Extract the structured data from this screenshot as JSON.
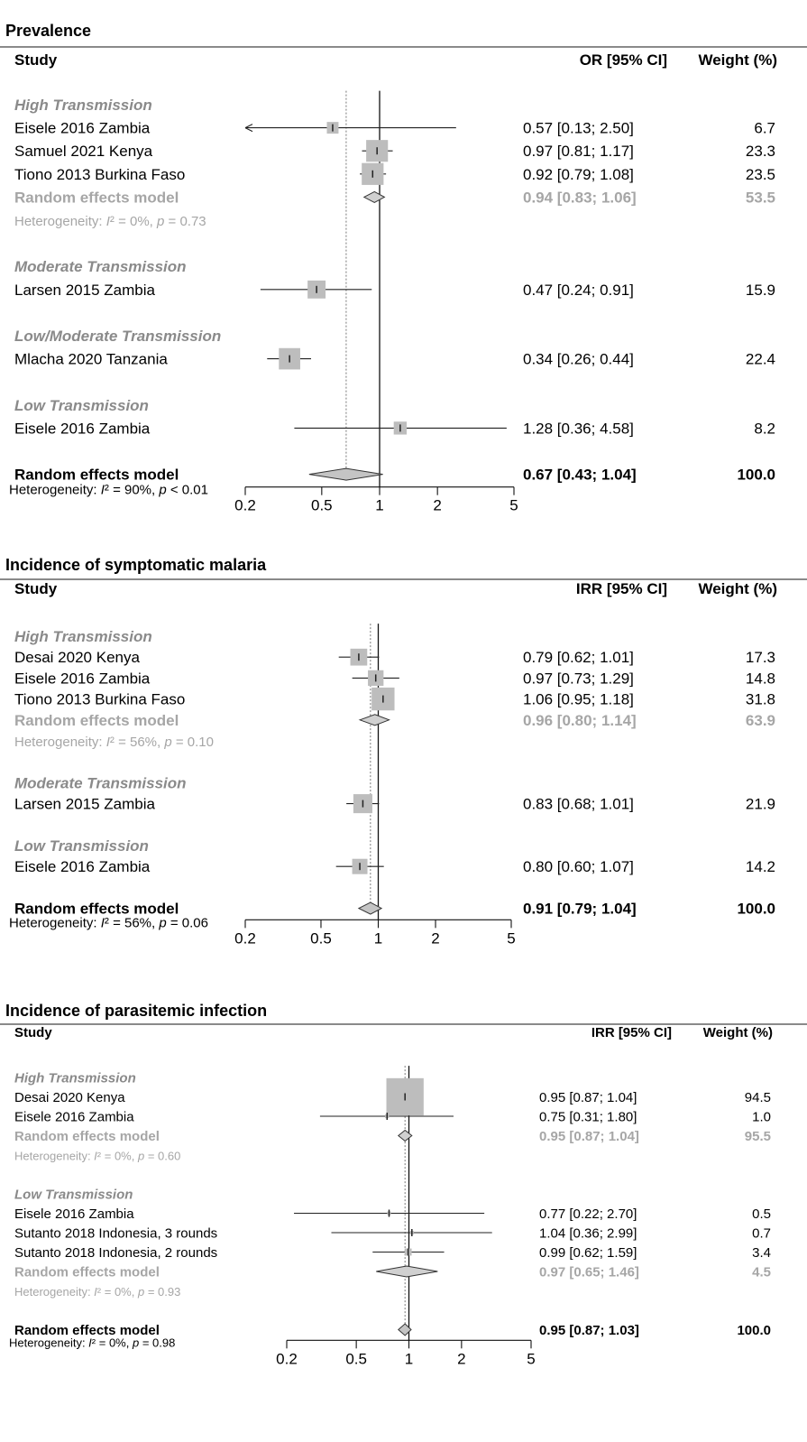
{
  "chart_data": [
    {
      "type": "forest",
      "title": "Prevalence",
      "header_study": "Study",
      "header_effect": "OR [95% CI]",
      "header_weight": "Weight (%)",
      "axis_ticks": [
        "0.2",
        "0.5",
        "1",
        "2",
        "5"
      ],
      "xlim": [
        0.2,
        5
      ],
      "log_scale": true,
      "rows": [
        {
          "type": "group",
          "label": "High Transmission"
        },
        {
          "type": "study",
          "label": "Eisele 2016 Zambia",
          "est": 0.57,
          "lo": 0.13,
          "hi": 2.5,
          "ci_text": "0.57  [0.13; 2.50]",
          "weight": "6.7",
          "arrow_left": true
        },
        {
          "type": "study",
          "label": "Samuel 2021 Kenya",
          "est": 0.97,
          "lo": 0.81,
          "hi": 1.17,
          "ci_text": "0.97  [0.81; 1.17]",
          "weight": "23.3"
        },
        {
          "type": "study",
          "label": "Tiono 2013 Burkina Faso",
          "est": 0.92,
          "lo": 0.79,
          "hi": 1.08,
          "ci_text": "0.92  [0.79; 1.08]",
          "weight": "23.5"
        },
        {
          "type": "subtotal",
          "label": "Random effects model",
          "est": 0.94,
          "lo": 0.83,
          "hi": 1.06,
          "ci_text": "0.94  [0.83; 1.06]",
          "weight": "53.5"
        },
        {
          "type": "het",
          "label": "Heterogeneity: I² = 0%, p = 0.73"
        },
        {
          "type": "blank"
        },
        {
          "type": "group",
          "label": "Moderate Transmission"
        },
        {
          "type": "study",
          "label": "Larsen 2015 Zambia",
          "est": 0.47,
          "lo": 0.24,
          "hi": 0.91,
          "ci_text": "0.47  [0.24; 0.91]",
          "weight": "15.9"
        },
        {
          "type": "blank"
        },
        {
          "type": "group",
          "label": "Low/Moderate Transmission"
        },
        {
          "type": "study",
          "label": "Mlacha 2020 Tanzania",
          "est": 0.34,
          "lo": 0.26,
          "hi": 0.44,
          "ci_text": "0.34  [0.26; 0.44]",
          "weight": "22.4"
        },
        {
          "type": "blank"
        },
        {
          "type": "group",
          "label": "Low Transmission"
        },
        {
          "type": "study",
          "label": "Eisele 2016 Zambia",
          "est": 1.28,
          "lo": 0.36,
          "hi": 4.58,
          "ci_text": "1.28  [0.36; 4.58]",
          "weight": "8.2"
        },
        {
          "type": "blank"
        },
        {
          "type": "overall",
          "label": "Random effects model",
          "est": 0.67,
          "lo": 0.43,
          "hi": 1.04,
          "ci_text": "0.67  [0.43; 1.04]",
          "weight": "100.0"
        },
        {
          "type": "het_overall",
          "label": "Heterogeneity: I² = 90%, p < 0.01"
        }
      ]
    },
    {
      "type": "forest",
      "title": "Incidence of symptomatic malaria",
      "header_study": "Study",
      "header_effect": "IRR [95% CI]",
      "header_weight": "Weight (%)",
      "axis_ticks": [
        "0.2",
        "0.5",
        "1",
        "2",
        "5"
      ],
      "xlim": [
        0.2,
        5
      ],
      "log_scale": true,
      "rows": [
        {
          "type": "group",
          "label": "High Transmission"
        },
        {
          "type": "study",
          "label": "Desai 2020 Kenya",
          "est": 0.79,
          "lo": 0.62,
          "hi": 1.01,
          "ci_text": "0.79  [0.62; 1.01]",
          "weight": "17.3"
        },
        {
          "type": "study",
          "label": "Eisele 2016 Zambia",
          "est": 0.97,
          "lo": 0.73,
          "hi": 1.29,
          "ci_text": "0.97  [0.73; 1.29]",
          "weight": "14.8"
        },
        {
          "type": "study",
          "label": "Tiono 2013 Burkina Faso",
          "est": 1.06,
          "lo": 0.95,
          "hi": 1.18,
          "ci_text": "1.06  [0.95; 1.18]",
          "weight": "31.8"
        },
        {
          "type": "subtotal",
          "label": "Random effects model",
          "est": 0.96,
          "lo": 0.8,
          "hi": 1.14,
          "ci_text": "0.96  [0.80; 1.14]",
          "weight": "63.9"
        },
        {
          "type": "het",
          "label": "Heterogeneity: I² = 56%, p = 0.10"
        },
        {
          "type": "blank"
        },
        {
          "type": "group",
          "label": "Moderate Transmission"
        },
        {
          "type": "study",
          "label": "Larsen 2015 Zambia",
          "est": 0.83,
          "lo": 0.68,
          "hi": 1.01,
          "ci_text": "0.83  [0.68; 1.01]",
          "weight": "21.9"
        },
        {
          "type": "blank"
        },
        {
          "type": "group",
          "label": "Low Transmission"
        },
        {
          "type": "study",
          "label": "Eisele 2016 Zambia",
          "est": 0.8,
          "lo": 0.6,
          "hi": 1.07,
          "ci_text": "0.80  [0.60; 1.07]",
          "weight": "14.2"
        },
        {
          "type": "blank"
        },
        {
          "type": "overall",
          "label": "Random effects model",
          "est": 0.91,
          "lo": 0.79,
          "hi": 1.04,
          "ci_text": "0.91  [0.79; 1.04]",
          "weight": "100.0"
        },
        {
          "type": "het_overall",
          "label": "Heterogeneity: I² = 56%, p = 0.06"
        }
      ]
    },
    {
      "type": "forest",
      "title": "Incidence of parasitemic infection",
      "header_study": "Study",
      "header_effect": "IRR [95% CI]",
      "header_weight": "Weight (%)",
      "axis_ticks": [
        "0.2",
        "0.5",
        "1",
        "2",
        "5"
      ],
      "xlim": [
        0.2,
        5
      ],
      "log_scale": true,
      "rows": [
        {
          "type": "group",
          "label": "High Transmission"
        },
        {
          "type": "study",
          "label": "Desai 2020 Kenya",
          "est": 0.95,
          "lo": 0.87,
          "hi": 1.04,
          "ci_text": "0.95  [0.87; 1.04]",
          "weight": "94.5"
        },
        {
          "type": "study",
          "label": "Eisele 2016 Zambia",
          "est": 0.75,
          "lo": 0.31,
          "hi": 1.8,
          "ci_text": "0.75  [0.31; 1.80]",
          "weight": "1.0"
        },
        {
          "type": "subtotal",
          "label": "Random effects model",
          "est": 0.95,
          "lo": 0.87,
          "hi": 1.04,
          "ci_text": "0.95  [0.87; 1.04]",
          "weight": "95.5"
        },
        {
          "type": "het",
          "label": "Heterogeneity: I² = 0%, p = 0.60"
        },
        {
          "type": "blank"
        },
        {
          "type": "group",
          "label": "Low Transmission"
        },
        {
          "type": "study",
          "label": "Eisele 2016 Zambia",
          "est": 0.77,
          "lo": 0.22,
          "hi": 2.7,
          "ci_text": "0.77  [0.22; 2.70]",
          "weight": "0.5"
        },
        {
          "type": "study",
          "label": "Sutanto 2018 Indonesia, 3 rounds",
          "est": 1.04,
          "lo": 0.36,
          "hi": 2.99,
          "ci_text": "1.04  [0.36; 2.99]",
          "weight": "0.7"
        },
        {
          "type": "study",
          "label": "Sutanto 2018 Indonesia, 2 rounds",
          "est": 0.99,
          "lo": 0.62,
          "hi": 1.59,
          "ci_text": "0.99  [0.62; 1.59]",
          "weight": "3.4"
        },
        {
          "type": "subtotal",
          "label": "Random effects model",
          "est": 0.97,
          "lo": 0.65,
          "hi": 1.46,
          "ci_text": "0.97  [0.65; 1.46]",
          "weight": "4.5"
        },
        {
          "type": "het",
          "label": "Heterogeneity: I² = 0%, p = 0.93"
        },
        {
          "type": "blank"
        },
        {
          "type": "overall",
          "label": "Random effects model",
          "est": 0.95,
          "lo": 0.87,
          "hi": 1.03,
          "ci_text": "0.95  [0.87; 1.03]",
          "weight": "100.0"
        },
        {
          "type": "het_overall",
          "label": "Heterogeneity: I² = 0%, p = 0.98"
        }
      ]
    }
  ]
}
